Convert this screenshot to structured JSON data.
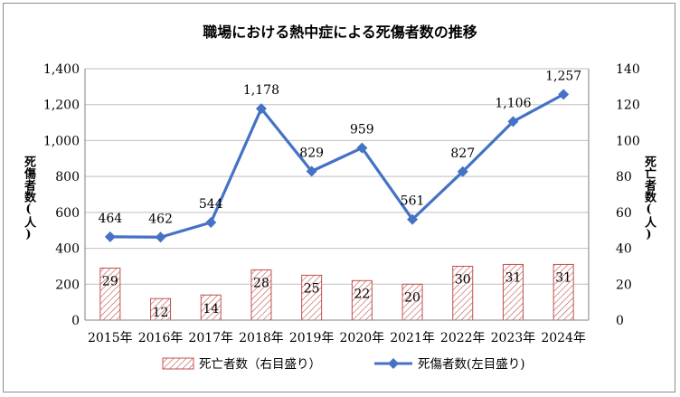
{
  "chart_data": {
    "type": "bar+line",
    "title": "職場における熱中症による死傷者数の推移",
    "categories": [
      "2015年",
      "2016年",
      "2017年",
      "2018年",
      "2019年",
      "2020年",
      "2021年",
      "2022年",
      "2023年",
      "2024年"
    ],
    "series": [
      {
        "name": "死亡者数（右目盛り）",
        "type": "bar",
        "axis": "right",
        "values": [
          29,
          12,
          14,
          28,
          25,
          22,
          20,
          30,
          31,
          31
        ],
        "labels": [
          "29",
          "12",
          "14",
          "28",
          "25",
          "22",
          "20",
          "30",
          "31",
          "31"
        ]
      },
      {
        "name": "死傷者数(左目盛り)",
        "type": "line",
        "axis": "left",
        "values": [
          464,
          462,
          544,
          1178,
          829,
          959,
          561,
          827,
          1106,
          1257
        ],
        "labels": [
          "464",
          "462",
          "544",
          "1,178",
          "829",
          "959",
          "561",
          "827",
          "1,106",
          "1,257"
        ]
      }
    ],
    "ylabel_left": "死傷者数(人)",
    "ylabel_right": "死亡者数(人)",
    "ylim_left": [
      0,
      1400
    ],
    "ylim_right": [
      0,
      140
    ],
    "yticks_left": [
      "0",
      "200",
      "400",
      "600",
      "800",
      "1,000",
      "1,200",
      "1,400"
    ],
    "yticks_right": [
      "0",
      "20",
      "40",
      "60",
      "80",
      "100",
      "120",
      "140"
    ],
    "grid": true,
    "legend_position": "bottom",
    "colors": {
      "line": "#4472c4",
      "bar_hatch": "#c0504d",
      "grid": "#bfbfbf"
    }
  }
}
